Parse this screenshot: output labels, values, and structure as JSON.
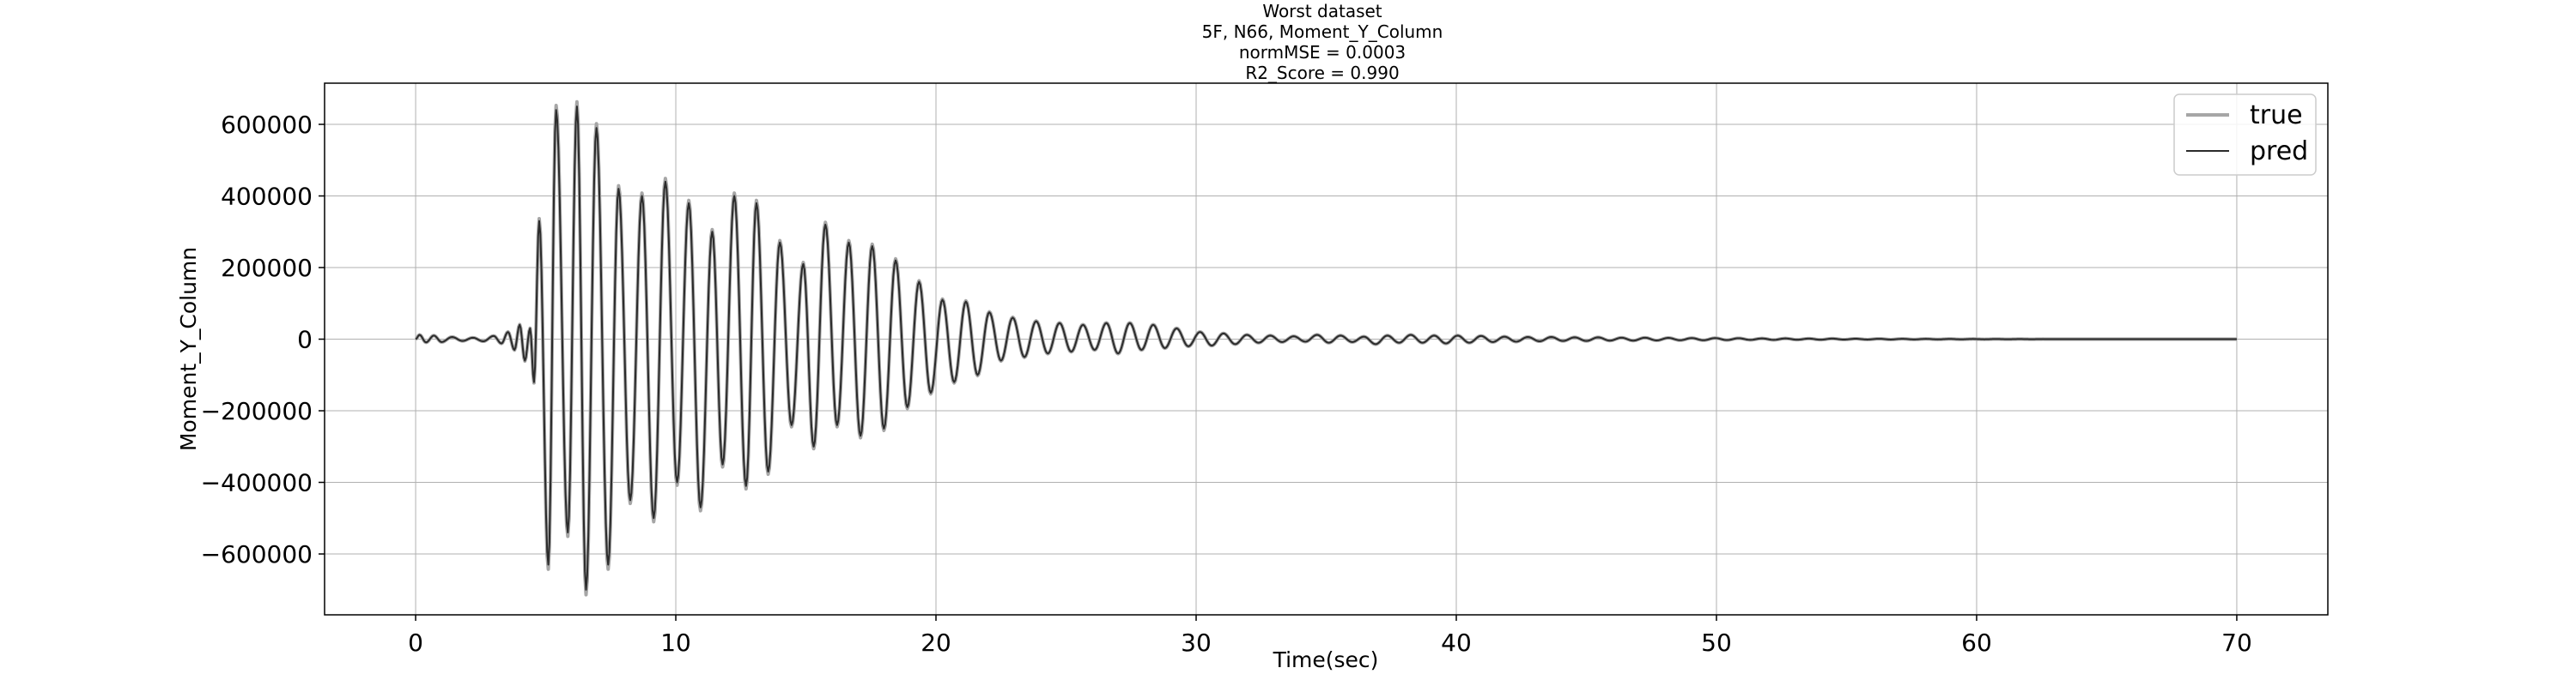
{
  "chart_data": {
    "type": "line",
    "title_lines": [
      "Worst dataset",
      "5F, N66, Moment_Y_Column",
      "normMSE = 0.0003",
      "R2_Score = 0.990"
    ],
    "xlabel": "Time(sec)",
    "ylabel": "Moment_Y_Column",
    "xlim": [
      -3.5,
      73.5
    ],
    "ylim": [
      -770000,
      715000
    ],
    "x_ticks": [
      0,
      10,
      20,
      30,
      40,
      50,
      60,
      70
    ],
    "y_ticks": [
      -600000,
      -400000,
      -200000,
      0,
      200000,
      400000,
      600000
    ],
    "x_tick_labels": [
      "0",
      "10",
      "20",
      "30",
      "40",
      "50",
      "60",
      "70"
    ],
    "y_tick_labels": [
      "−600000",
      "−400000",
      "−200000",
      "0",
      "200000",
      "400000",
      "600000"
    ],
    "grid": true,
    "legend_position": "top-right",
    "series": [
      {
        "name": "true",
        "color": "#a6a6a6"
      },
      {
        "name": "pred",
        "color": "#2b2b2b"
      }
    ],
    "x_range": [
      0,
      70
    ],
    "peaks": [
      [
        0.0,
        0
      ],
      [
        0.15,
        12000
      ],
      [
        0.4,
        -9000
      ],
      [
        0.7,
        10000
      ],
      [
        1.0,
        -8000
      ],
      [
        1.4,
        6000
      ],
      [
        1.8,
        -5000
      ],
      [
        2.2,
        4000
      ],
      [
        2.6,
        -6000
      ],
      [
        3.0,
        9000
      ],
      [
        3.3,
        -12000
      ],
      [
        3.55,
        20000
      ],
      [
        3.8,
        -30000
      ],
      [
        4.0,
        40000
      ],
      [
        4.2,
        -60000
      ],
      [
        4.4,
        30000
      ],
      [
        4.55,
        -120000
      ],
      [
        4.75,
        330000
      ],
      [
        5.1,
        -630000
      ],
      [
        5.4,
        640000
      ],
      [
        5.85,
        -540000
      ],
      [
        6.2,
        650000
      ],
      [
        6.55,
        -700000
      ],
      [
        6.95,
        590000
      ],
      [
        7.4,
        -630000
      ],
      [
        7.8,
        420000
      ],
      [
        8.25,
        -450000
      ],
      [
        8.7,
        400000
      ],
      [
        9.15,
        -500000
      ],
      [
        9.6,
        440000
      ],
      [
        10.05,
        -400000
      ],
      [
        10.5,
        380000
      ],
      [
        10.95,
        -470000
      ],
      [
        11.4,
        300000
      ],
      [
        11.8,
        -350000
      ],
      [
        12.25,
        400000
      ],
      [
        12.7,
        -410000
      ],
      [
        13.1,
        380000
      ],
      [
        13.55,
        -370000
      ],
      [
        14.0,
        270000
      ],
      [
        14.45,
        -240000
      ],
      [
        14.9,
        210000
      ],
      [
        15.3,
        -300000
      ],
      [
        15.75,
        320000
      ],
      [
        16.2,
        -240000
      ],
      [
        16.65,
        270000
      ],
      [
        17.1,
        -270000
      ],
      [
        17.55,
        260000
      ],
      [
        18.0,
        -250000
      ],
      [
        18.45,
        220000
      ],
      [
        18.9,
        -190000
      ],
      [
        19.35,
        160000
      ],
      [
        19.8,
        -150000
      ],
      [
        20.25,
        110000
      ],
      [
        20.7,
        -120000
      ],
      [
        21.15,
        105000
      ],
      [
        21.6,
        -100000
      ],
      [
        22.05,
        75000
      ],
      [
        22.5,
        -60000
      ],
      [
        22.95,
        60000
      ],
      [
        23.4,
        -50000
      ],
      [
        23.85,
        50000
      ],
      [
        24.3,
        -40000
      ],
      [
        24.75,
        45000
      ],
      [
        25.2,
        -35000
      ],
      [
        25.65,
        40000
      ],
      [
        26.1,
        -30000
      ],
      [
        26.55,
        45000
      ],
      [
        27.0,
        -40000
      ],
      [
        27.45,
        45000
      ],
      [
        27.9,
        -30000
      ],
      [
        28.35,
        40000
      ],
      [
        28.8,
        -25000
      ],
      [
        29.25,
        30000
      ],
      [
        29.7,
        -20000
      ],
      [
        30.15,
        20000
      ],
      [
        30.6,
        -18000
      ],
      [
        31.05,
        16000
      ],
      [
        31.5,
        -14000
      ],
      [
        31.95,
        12000
      ],
      [
        32.4,
        -10000
      ],
      [
        32.85,
        10000
      ],
      [
        33.3,
        -8000
      ],
      [
        33.75,
        8000
      ],
      [
        34.2,
        -7000
      ],
      [
        34.65,
        12000
      ],
      [
        35.1,
        -10000
      ],
      [
        35.55,
        10000
      ],
      [
        36.0,
        -8000
      ],
      [
        36.45,
        7000
      ],
      [
        36.9,
        -14000
      ],
      [
        37.35,
        10000
      ],
      [
        37.8,
        -10000
      ],
      [
        38.25,
        12000
      ],
      [
        38.7,
        -10000
      ],
      [
        39.15,
        10000
      ],
      [
        39.6,
        -12000
      ],
      [
        40.05,
        10000
      ],
      [
        40.5,
        -10000
      ],
      [
        40.95,
        9000
      ],
      [
        41.4,
        -8000
      ],
      [
        41.85,
        7000
      ],
      [
        42.3,
        -7000
      ],
      [
        42.75,
        6000
      ],
      [
        43.2,
        -6000
      ],
      [
        43.65,
        6000
      ],
      [
        44.1,
        -5000
      ],
      [
        44.55,
        5000
      ],
      [
        45.0,
        -5000
      ],
      [
        45.45,
        5000
      ],
      [
        45.9,
        -4000
      ],
      [
        46.35,
        4000
      ],
      [
        46.8,
        -4000
      ],
      [
        47.25,
        4000
      ],
      [
        47.7,
        -3500
      ],
      [
        48.15,
        3500
      ],
      [
        48.6,
        -3000
      ],
      [
        49.05,
        3000
      ],
      [
        49.5,
        -3000
      ],
      [
        49.95,
        3000
      ],
      [
        50.4,
        -2500
      ],
      [
        50.85,
        2500
      ],
      [
        51.3,
        -2000
      ],
      [
        51.75,
        2000
      ],
      [
        52.2,
        -2000
      ],
      [
        52.65,
        2000
      ],
      [
        53.1,
        -1500
      ],
      [
        53.55,
        1500
      ],
      [
        54.0,
        -1500
      ],
      [
        54.45,
        1500
      ],
      [
        54.9,
        -1200
      ],
      [
        55.35,
        1200
      ],
      [
        55.8,
        -1000
      ],
      [
        56.25,
        1000
      ],
      [
        56.7,
        -1000
      ],
      [
        57.15,
        900
      ],
      [
        57.6,
        -800
      ],
      [
        58.05,
        800
      ],
      [
        58.5,
        -700
      ],
      [
        58.95,
        600
      ],
      [
        59.4,
        -500
      ],
      [
        59.85,
        500
      ],
      [
        60.3,
        -400
      ],
      [
        60.75,
        400
      ],
      [
        61.2,
        -300
      ],
      [
        61.65,
        300
      ],
      [
        62.1,
        -200
      ],
      [
        62.55,
        200
      ],
      [
        63.0,
        -100
      ],
      [
        64.0,
        0
      ],
      [
        70.0,
        0
      ]
    ]
  }
}
